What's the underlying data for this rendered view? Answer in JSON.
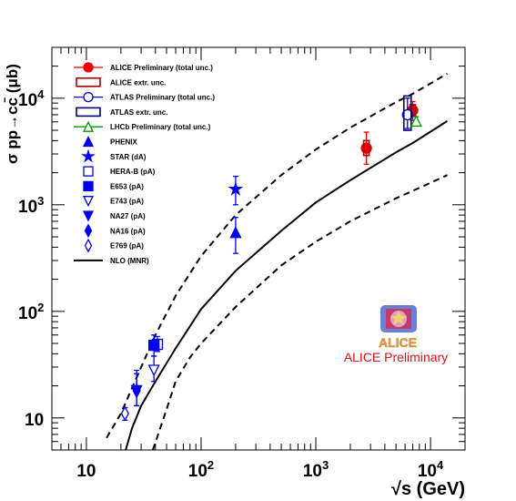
{
  "chart_data": {
    "type": "scatter",
    "title": "",
    "xlabel": "√s (GeV)",
    "ylabel": "σ pp→cc̄ (μb)",
    "x_scale": "log",
    "y_scale": "log",
    "xlim": [
      5,
      20000
    ],
    "ylim": [
      5,
      30000
    ],
    "x_ticks": [
      {
        "value": 10,
        "base": "10",
        "exp": ""
      },
      {
        "value": 100,
        "base": "10",
        "exp": "2"
      },
      {
        "value": 1000,
        "base": "10",
        "exp": "3"
      },
      {
        "value": 10000,
        "base": "10",
        "exp": "4"
      }
    ],
    "y_ticks": [
      {
        "value": 10,
        "base": "10",
        "exp": ""
      },
      {
        "value": 100,
        "base": "10",
        "exp": "2"
      },
      {
        "value": 1000,
        "base": "10",
        "exp": "3"
      },
      {
        "value": 10000,
        "base": "10",
        "exp": "4"
      }
    ],
    "grid": false,
    "legend_position": "top-left",
    "annotation": "ALICE Preliminary",
    "logo_text": "ALICE",
    "series": [
      {
        "name": "ALICE Preliminary (total unc.)",
        "marker": "circle-filled",
        "color": "#ee0000",
        "points": [
          {
            "x": 2760,
            "y": 3400,
            "ylo": 2400,
            "yhi": 4800
          },
          {
            "x": 7000,
            "y": 7700,
            "ylo": 6200,
            "yhi": 9300
          }
        ]
      },
      {
        "name": "ALICE extr. unc.",
        "marker": "box-open",
        "color": "#aa0000",
        "points": [
          {
            "x": 2760,
            "y": 3400,
            "blo": 2900,
            "bhi": 4000
          },
          {
            "x": 7000,
            "y": 7700,
            "blo": 6800,
            "bhi": 8700
          }
        ]
      },
      {
        "name": "ATLAS Preliminary (total unc.)",
        "marker": "circle-open",
        "color": "#0000cc",
        "points": [
          {
            "x": 6300,
            "y": 7000,
            "ylo": 5200,
            "yhi": 10000
          }
        ]
      },
      {
        "name": "ATLAS extr. unc.",
        "marker": "box-open",
        "color": "#00007a",
        "points": [
          {
            "x": 6300,
            "y": 7000,
            "blo": 5000,
            "bhi": 10500
          }
        ]
      },
      {
        "name": "LHCb Preliminary (total unc.)",
        "marker": "triangle-open",
        "color": "#009900",
        "points": [
          {
            "x": 7500,
            "y": 6100,
            "ylo": 5500,
            "yhi": 6700
          }
        ]
      },
      {
        "name": "PHENIX",
        "marker": "triangle-filled",
        "color": "#0000ee",
        "points": [
          {
            "x": 200,
            "y": 550,
            "ylo": 350,
            "yhi": 760
          }
        ]
      },
      {
        "name": "STAR (dA)",
        "marker": "star",
        "color": "#0000ee",
        "points": [
          {
            "x": 200,
            "y": 1400,
            "ylo": 1000,
            "yhi": 1850
          }
        ]
      },
      {
        "name": "HERA-B (pA)",
        "marker": "square-open",
        "color": "#0000ee",
        "points": [
          {
            "x": 41.6,
            "y": 49,
            "ylo": 42,
            "yhi": 58
          }
        ]
      },
      {
        "name": "E653 (pA)",
        "marker": "square-filled",
        "color": "#0000ee",
        "points": [
          {
            "x": 38.8,
            "y": 48,
            "ylo": 38,
            "yhi": 60
          }
        ]
      },
      {
        "name": "E743 (pA)",
        "marker": "triangle-down-open",
        "color": "#0000ee",
        "points": [
          {
            "x": 38.8,
            "y": 28,
            "ylo": 22,
            "yhi": 38
          }
        ]
      },
      {
        "name": "NA27 (pA)",
        "marker": "triangle-down-filled",
        "color": "#0000ee",
        "points": [
          {
            "x": 27.4,
            "y": 18,
            "ylo": 13,
            "yhi": 28
          }
        ]
      },
      {
        "name": "NA16 (pA)",
        "marker": "diamond-filled",
        "color": "#0000ee",
        "points": [
          {
            "x": 27.4,
            "y": 18,
            "ylo": 13,
            "yhi": 26
          }
        ]
      },
      {
        "name": "E769 (pA)",
        "marker": "diamond-open",
        "color": "#0000ee",
        "points": [
          {
            "x": 21.7,
            "y": 11,
            "ylo": 9.5,
            "yhi": 12.5
          }
        ]
      }
    ],
    "curves": [
      {
        "name": "NLO (MNR)",
        "style": "solid",
        "color": "#000000",
        "points": [
          [
            22,
            5
          ],
          [
            25,
            8
          ],
          [
            30,
            13
          ],
          [
            40,
            22
          ],
          [
            60,
            45
          ],
          [
            100,
            105
          ],
          [
            200,
            240
          ],
          [
            500,
            570
          ],
          [
            1000,
            1050
          ],
          [
            2000,
            1700
          ],
          [
            5000,
            3100
          ],
          [
            7000,
            3800
          ],
          [
            14000,
            6100
          ]
        ]
      },
      {
        "name": "upper",
        "style": "dashed",
        "color": "#000000",
        "points": [
          [
            15,
            6.5
          ],
          [
            20,
            11
          ],
          [
            30,
            30
          ],
          [
            40,
            60
          ],
          [
            60,
            140
          ],
          [
            100,
            330
          ],
          [
            200,
            800
          ],
          [
            500,
            1900
          ],
          [
            1000,
            3300
          ],
          [
            2000,
            5300
          ],
          [
            5000,
            9200
          ],
          [
            7000,
            11000
          ],
          [
            14000,
            17000
          ]
        ]
      },
      {
        "name": "lower",
        "style": "dashed",
        "color": "#000000",
        "points": [
          [
            38,
            5
          ],
          [
            50,
            12
          ],
          [
            60,
            22
          ],
          [
            80,
            37
          ],
          [
            100,
            50
          ],
          [
            200,
            110
          ],
          [
            500,
            270
          ],
          [
            1000,
            450
          ],
          [
            2000,
            700
          ],
          [
            5000,
            1150
          ],
          [
            7000,
            1350
          ],
          [
            14000,
            1900
          ]
        ]
      }
    ]
  }
}
